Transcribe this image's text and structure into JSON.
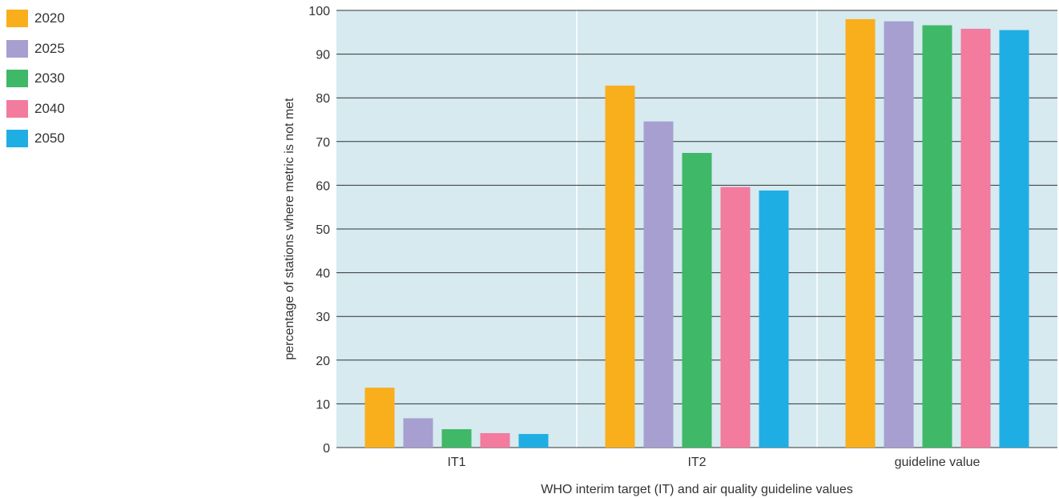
{
  "chart_data": {
    "type": "bar",
    "title": "",
    "xlabel": "WHO interim target (IT) and air quality guideline values",
    "ylabel": "percentage of stations where metric is not met",
    "ylim": [
      0,
      100
    ],
    "yticks": [
      0,
      10,
      20,
      30,
      40,
      50,
      60,
      70,
      80,
      90,
      100
    ],
    "categories": [
      "IT1",
      "IT2",
      "guideline value"
    ],
    "series": [
      {
        "name": "2020",
        "color": "#F9AE1B",
        "values": [
          13.7,
          82.8,
          98.0
        ]
      },
      {
        "name": "2025",
        "color": "#A69FD0",
        "values": [
          6.7,
          74.6,
          97.5
        ]
      },
      {
        "name": "2030",
        "color": "#3FB868",
        "values": [
          4.2,
          67.4,
          96.6
        ]
      },
      {
        "name": "2040",
        "color": "#F27B9E",
        "values": [
          3.3,
          59.6,
          95.8
        ]
      },
      {
        "name": "2050",
        "color": "#1FAEE3",
        "values": [
          3.1,
          58.8,
          95.5
        ]
      }
    ],
    "grid": true,
    "legend_position": "top-left"
  },
  "colors": {
    "plot_background": "#D6EAF0",
    "grid_line": "#333333",
    "separator": "#FFFFFF"
  }
}
